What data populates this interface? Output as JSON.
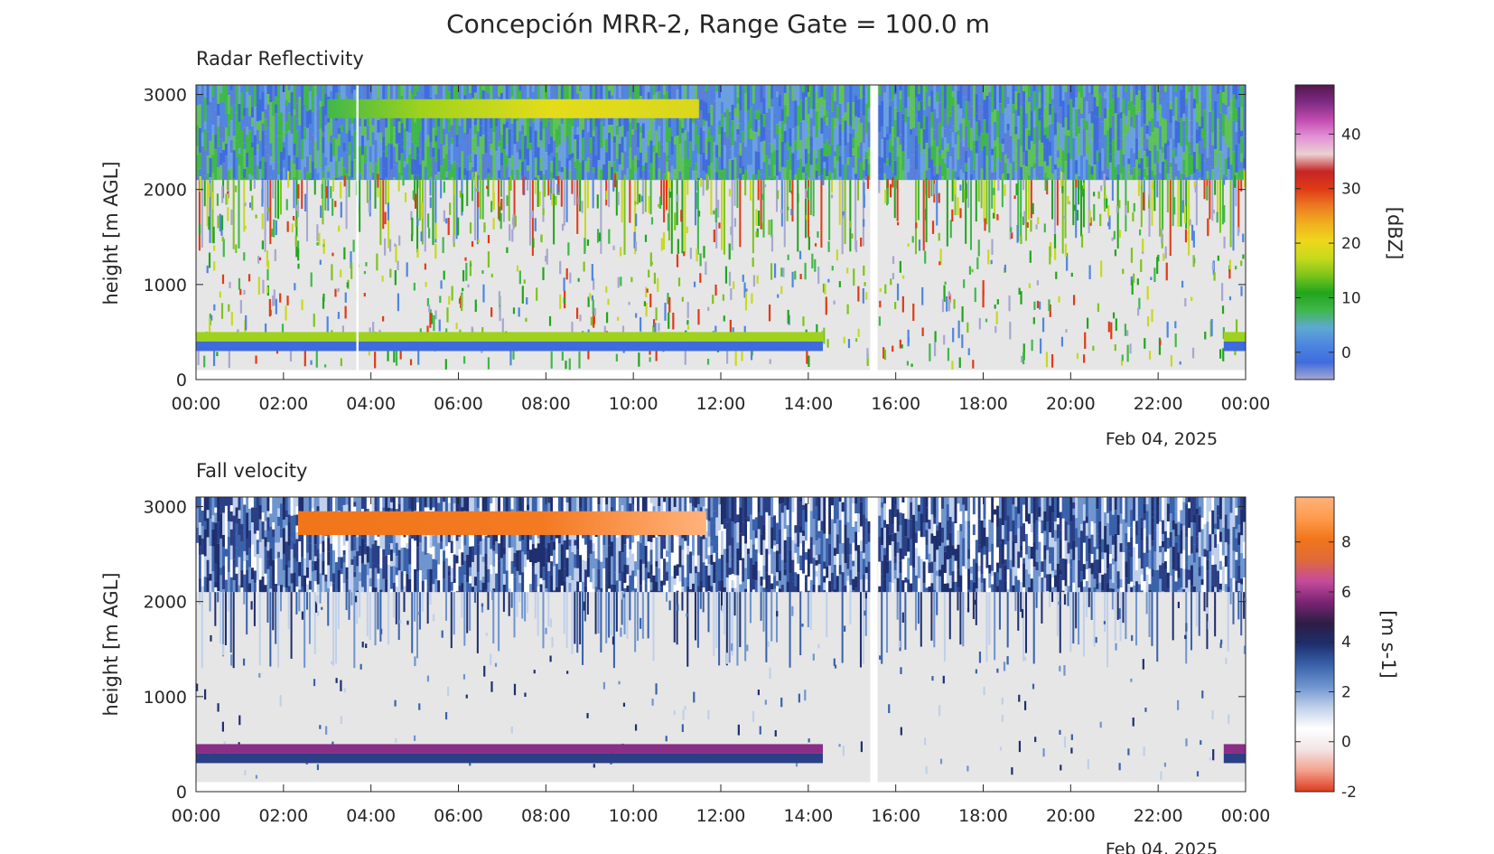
{
  "figure": {
    "title": "Concepción MRR-2, Range Gate = 100.0 m"
  },
  "chart_data": [
    {
      "type": "heatmap",
      "title": "Radar Reflectivity",
      "xlabel": "",
      "ylabel": "height [m AGL]",
      "date_label": "Feb 04, 2025",
      "x_ticks": [
        "00:00",
        "02:00",
        "04:00",
        "06:00",
        "08:00",
        "10:00",
        "12:00",
        "14:00",
        "16:00",
        "18:00",
        "20:00",
        "22:00",
        "00:00"
      ],
      "xlim": [
        "2025-02-04 00:00",
        "2025-02-05 00:00"
      ],
      "y_ticks": [
        0,
        1000,
        2000,
        3000
      ],
      "ylim": [
        0,
        3100
      ],
      "data_range_height_m": [
        100,
        3100
      ],
      "colorbar": {
        "label": "[dBZ]",
        "ticks": [
          0,
          10,
          20,
          30,
          40
        ],
        "range": [
          -5,
          49
        ],
        "colors": [
          "#a5a7d2",
          "#3f6cdc",
          "#4e86e0",
          "#5ea9d4",
          "#3fb84a",
          "#22a51d",
          "#7cc41c",
          "#c8d91c",
          "#eed71b",
          "#f0b01e",
          "#ed7b23",
          "#e03a16",
          "#c62525",
          "#ebd1d2",
          "#e391d6",
          "#c14bb0",
          "#7d2b83",
          "#56164d"
        ]
      },
      "features": [
        {
          "label": "melting layer / upper band",
          "time": [
            "03:00",
            "11:30"
          ],
          "height_m": [
            2750,
            2950
          ],
          "value_dbz": 20
        },
        {
          "label": "upper cloud layer",
          "time": [
            "00:00",
            "24:00"
          ],
          "height_m": [
            2100,
            3100
          ],
          "value_dbz": [
            -2,
            8
          ]
        },
        {
          "label": "lowest gates band",
          "time": [
            "00:00",
            "14:20"
          ],
          "height_m": [
            300,
            500
          ],
          "value_dbz": [
            0,
            18
          ]
        },
        {
          "label": "lowest gates band (late)",
          "time": [
            "23:30",
            "24:00"
          ],
          "height_m": [
            300,
            500
          ],
          "value_dbz": [
            0,
            12
          ]
        },
        {
          "label": "data gap",
          "time": [
            "15:25",
            "15:35"
          ],
          "height_m": [
            100,
            3100
          ],
          "value_dbz": null
        },
        {
          "label": "data gap",
          "time": [
            "03:40",
            "03:43"
          ],
          "height_m": [
            100,
            3100
          ],
          "value_dbz": null
        }
      ]
    },
    {
      "type": "heatmap",
      "title": "Fall velocity",
      "xlabel": "",
      "ylabel": "height [m AGL]",
      "date_label": "Feb 04, 2025",
      "x_ticks": [
        "00:00",
        "02:00",
        "04:00",
        "06:00",
        "08:00",
        "10:00",
        "12:00",
        "14:00",
        "16:00",
        "18:00",
        "20:00",
        "22:00",
        "00:00"
      ],
      "xlim": [
        "2025-02-04 00:00",
        "2025-02-05 00:00"
      ],
      "y_ticks": [
        0,
        1000,
        2000,
        3000
      ],
      "ylim": [
        0,
        3100
      ],
      "data_range_height_m": [
        100,
        3100
      ],
      "colorbar": {
        "label": "[m s-1]",
        "ticks": [
          -2,
          0,
          2,
          4,
          6,
          8
        ],
        "range": [
          -2,
          9.8
        ],
        "colors": [
          "#dc3a1e",
          "#f4a08c",
          "#f2e5e5",
          "#ffffff",
          "#c0d0ea",
          "#6f95cf",
          "#3a62ab",
          "#1e2f6e",
          "#2d1d44",
          "#7a2473",
          "#c44b9d",
          "#e06a3a",
          "#f1761a",
          "#ff9b4e",
          "#ffb27b"
        ]
      },
      "features": [
        {
          "label": "upper band",
          "time": [
            "02:20",
            "11:40"
          ],
          "height_m": [
            2700,
            2950
          ],
          "value_ms": 8.5
        },
        {
          "label": "upper cloud layer",
          "time": [
            "00:00",
            "24:00"
          ],
          "height_m": [
            2100,
            3100
          ],
          "value_ms": [
            1,
            4
          ]
        },
        {
          "label": "lowest gates band top",
          "time": [
            "00:00",
            "14:20"
          ],
          "height_m": [
            400,
            500
          ],
          "value_ms": 5.5
        },
        {
          "label": "lowest gates band bottom",
          "time": [
            "00:00",
            "14:20"
          ],
          "height_m": [
            300,
            400
          ],
          "value_ms": 3
        },
        {
          "label": "lowest gates band (late)",
          "time": [
            "23:30",
            "24:00"
          ],
          "height_m": [
            300,
            500
          ],
          "value_ms": [
            3,
            5.5
          ]
        },
        {
          "label": "data gap",
          "time": [
            "15:25",
            "15:35"
          ],
          "height_m": [
            100,
            3100
          ],
          "value_ms": null
        }
      ]
    }
  ]
}
